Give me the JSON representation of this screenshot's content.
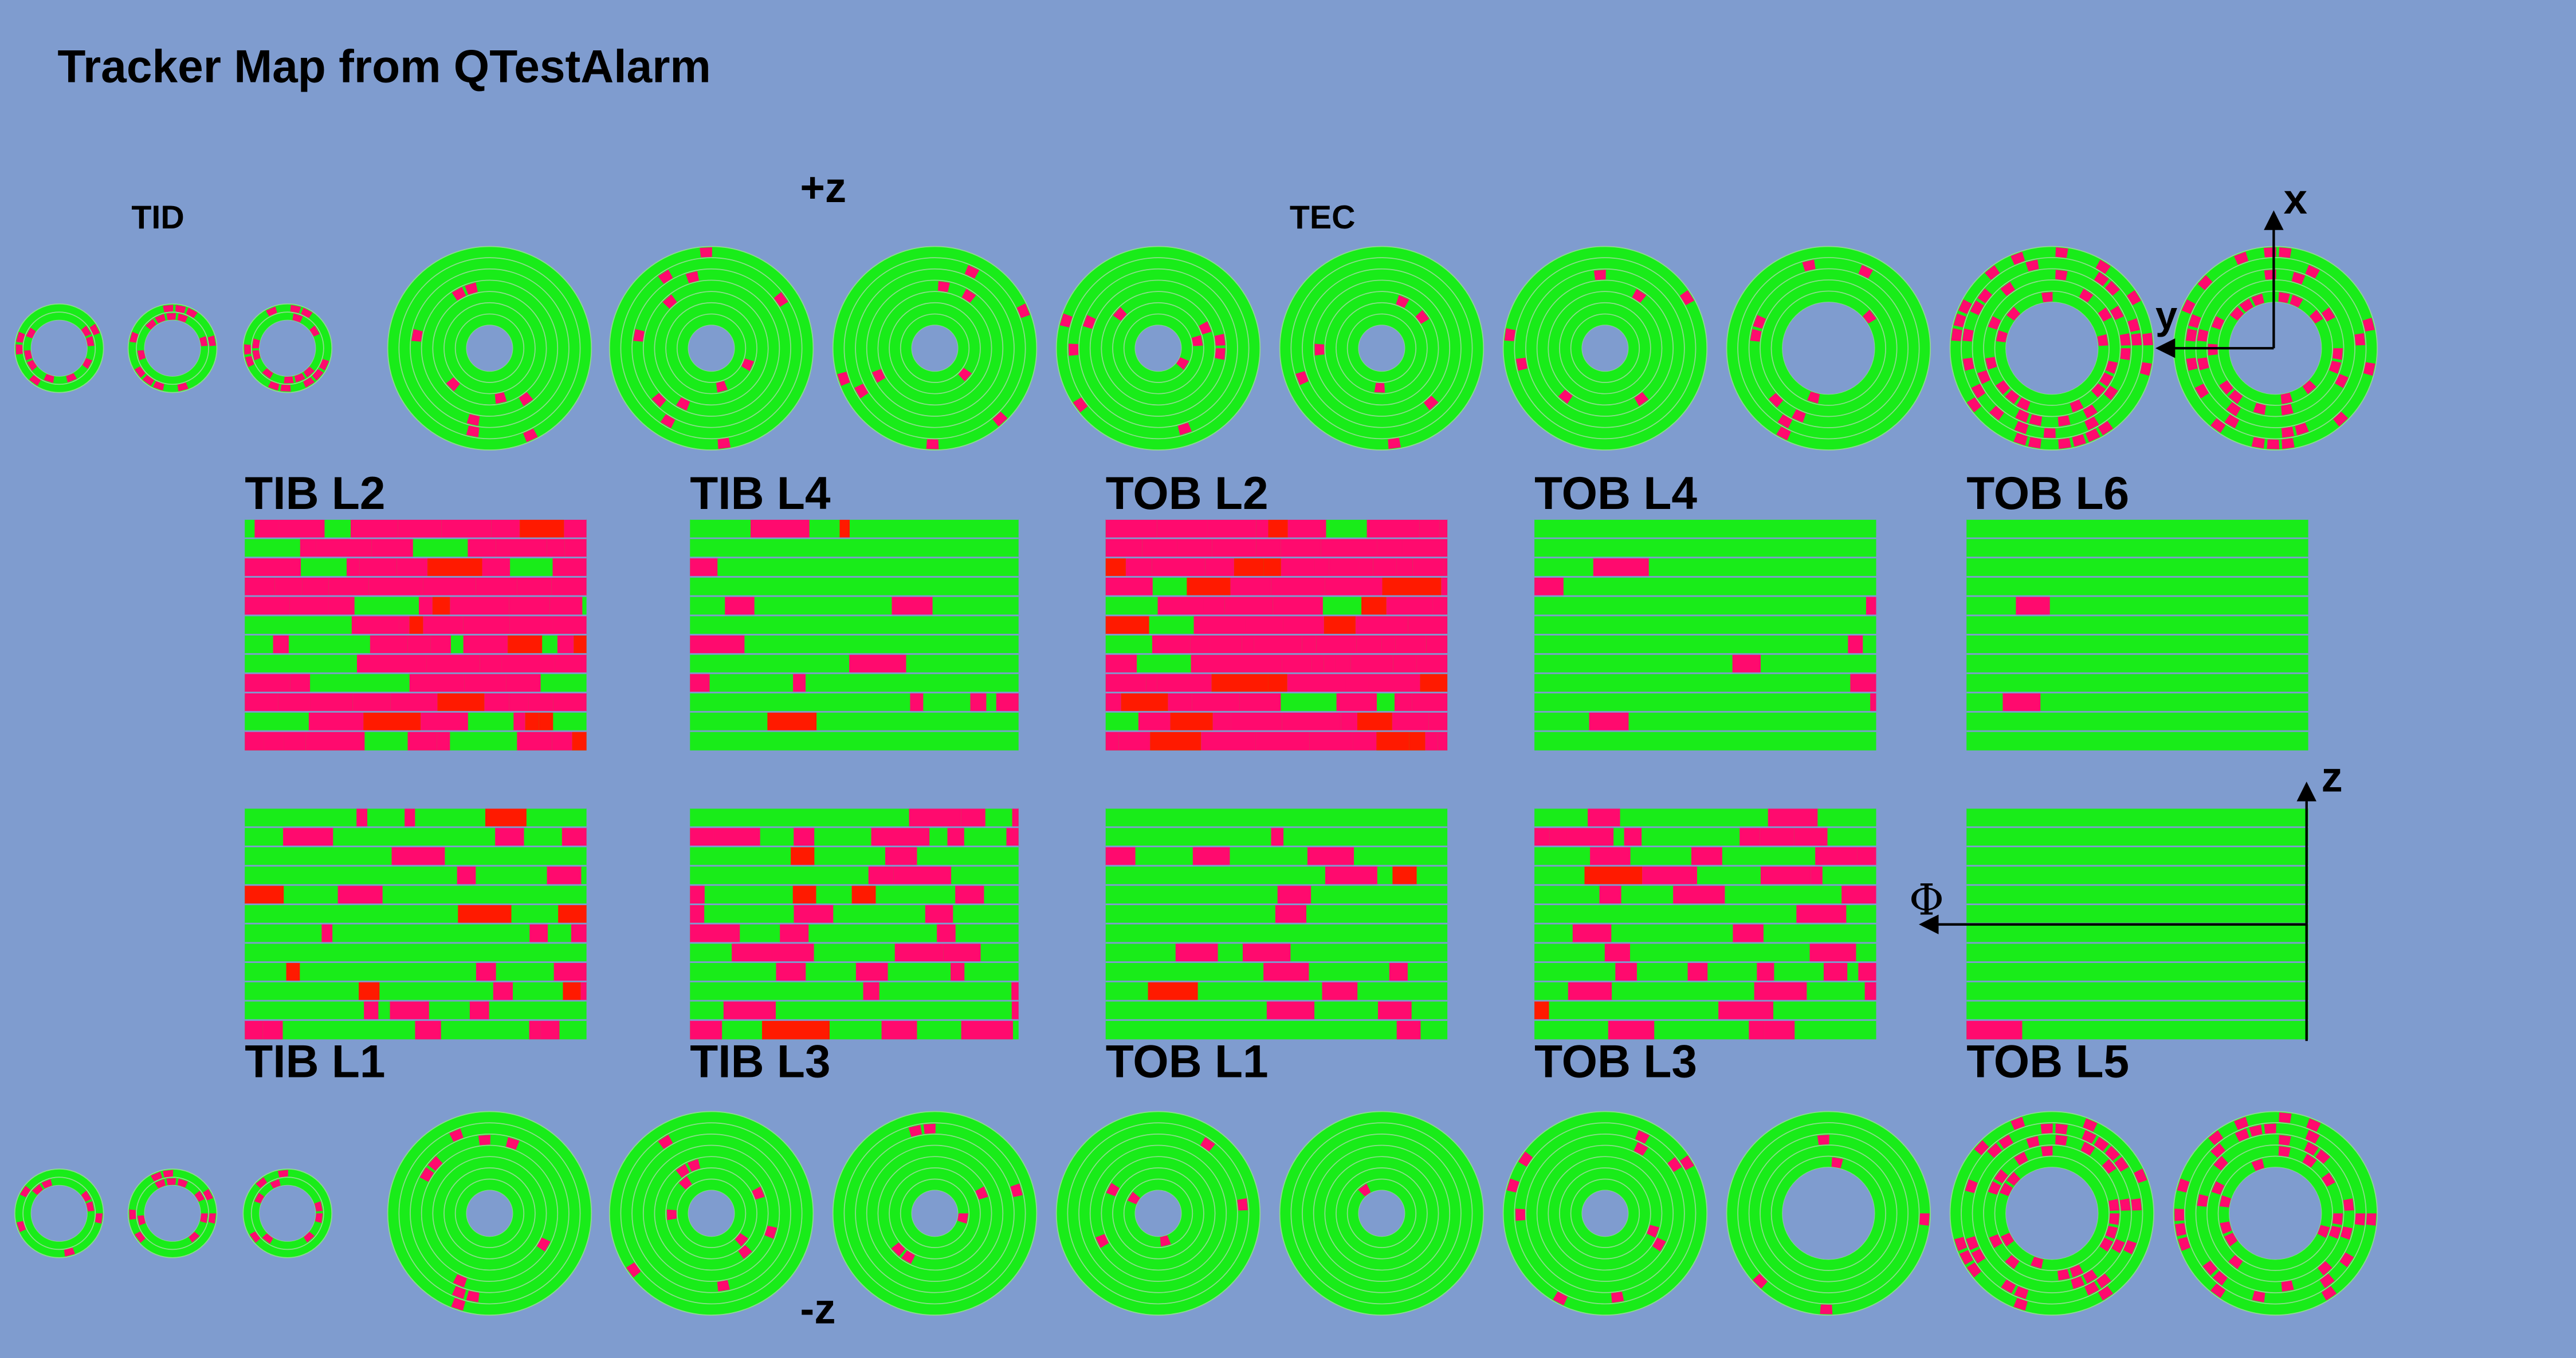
{
  "header": {
    "title": "Tracker Map from  QTestAlarm"
  },
  "labels": {
    "tid": "TID",
    "plus_z": "+z",
    "tec": "TEC",
    "minus_z": "-z"
  },
  "layers": {
    "top": [
      "TIB L2",
      "TIB L4",
      "TOB L2",
      "TOB L4",
      "TOB L6"
    ],
    "bottom": [
      "TIB L1",
      "TIB L3",
      "TOB L1",
      "TOB L3",
      "TOB L5"
    ]
  },
  "axes": {
    "x": "x",
    "y": "y",
    "z": "z",
    "phi": "Φ"
  }
}
